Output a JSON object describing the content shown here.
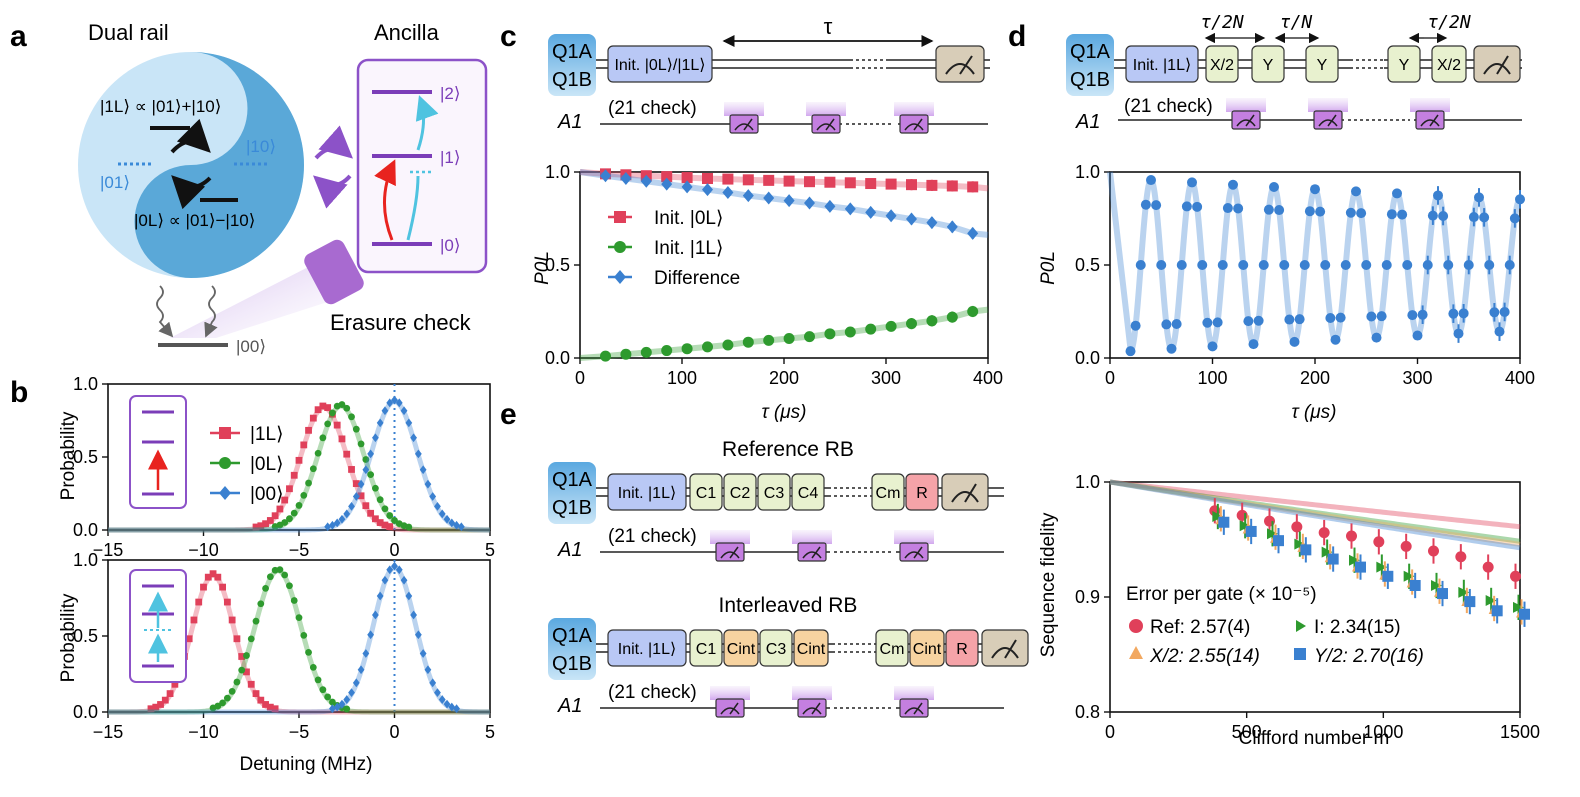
{
  "panels": {
    "a": {
      "letter": "a",
      "dual_rail_title": "Dual rail",
      "ancilla_title": "Ancilla",
      "logical_one": "|1L⟩ ∝ |01⟩+|10⟩",
      "logical_zero": "|0L⟩ ∝ |01⟩−|10⟩",
      "state_01": "|01⟩",
      "state_10": "|10⟩",
      "state_00": "|00⟩",
      "ancilla_levels": [
        "|2⟩",
        "|1⟩",
        "|0⟩"
      ],
      "erasure_label": "Erasure check"
    },
    "b": {
      "letter": "b",
      "ylabel": "Probability",
      "xlabel": "Detuning (MHz)",
      "legend": [
        "|1L⟩",
        "|0L⟩",
        "|00⟩"
      ],
      "colors": {
        "one": "#e0405a",
        "zero": "#2e9a2e",
        "vac": "#3a80d0"
      }
    },
    "c": {
      "letter": "c",
      "q_top": "Q1A",
      "q_bot": "Q1B",
      "ancilla": "A1",
      "init_label": "Init. |0L⟩/|1L⟩",
      "tau_label": "τ",
      "check_label": "(21 check)",
      "ylabel": "P0L",
      "xlabel": "τ (μs)",
      "legend": [
        "Init. |0L⟩",
        "Init. |1L⟩",
        "Difference"
      ]
    },
    "d": {
      "letter": "d",
      "q_top": "Q1A",
      "q_bot": "Q1B",
      "ancilla": "A1",
      "init_label": "Init. |1L⟩",
      "gates": [
        "X/2",
        "Y",
        "Y",
        "Y",
        "X/2"
      ],
      "tau_labels": [
        "τ/2N",
        "τ/N",
        "τ/2N"
      ],
      "check_label": "(21 check)",
      "ylabel": "P0L",
      "xlabel": "τ (μs)"
    },
    "e": {
      "letter": "e",
      "ref_title": "Reference RB",
      "int_title": "Interleaved RB",
      "q_top": "Q1A",
      "q_bot": "Q1B",
      "ancilla": "A1",
      "init_label": "Init. |1L⟩",
      "ref_gates": [
        "C1",
        "C2",
        "C3",
        "C4",
        "Cm",
        "R"
      ],
      "int_gates": [
        "C1",
        "Cint",
        "C3",
        "Cint",
        "Cm",
        "Cint",
        "R"
      ],
      "check_label": "(21 check)",
      "ylabel": "Sequence fidelity",
      "xlabel": "Clifford number m",
      "legend_title": "Error per gate (× 10⁻⁵)",
      "legend": [
        "Ref: 2.57(4)",
        "I: 2.34(15)",
        "X/2: 2.55(14)",
        "Y/2: 2.70(16)"
      ]
    }
  },
  "chart_data": [
    {
      "type": "line",
      "panel": "b-top",
      "xlabel": "Detuning (MHz)",
      "ylabel": "Probability",
      "xlim": [
        -15,
        5
      ],
      "ylim": [
        0,
        1
      ],
      "xticks": [
        -15,
        -10,
        -5,
        0,
        5
      ],
      "yticks": [
        0.0,
        0.5,
        1.0
      ],
      "series": [
        {
          "name": "|1L⟩",
          "peak_x": -3.7,
          "peak_y": 0.84,
          "width": 1.2
        },
        {
          "name": "|0L⟩",
          "peak_x": -2.8,
          "peak_y": 0.85,
          "width": 1.2
        },
        {
          "name": "|00⟩",
          "peak_x": 0.0,
          "peak_y": 0.88,
          "width": 1.2
        }
      ]
    },
    {
      "type": "line",
      "panel": "b-bottom",
      "xlabel": "Detuning (MHz)",
      "ylabel": "Probability",
      "xlim": [
        -15,
        5
      ],
      "ylim": [
        0,
        1
      ],
      "xticks": [
        -15,
        -10,
        -5,
        0,
        5
      ],
      "yticks": [
        0.0,
        0.5,
        1.0
      ],
      "series": [
        {
          "name": "|1L⟩",
          "peak_x": -9.5,
          "peak_y": 0.9,
          "width": 1.1
        },
        {
          "name": "|0L⟩",
          "peak_x": -6.1,
          "peak_y": 0.93,
          "width": 1.2
        },
        {
          "name": "|00⟩",
          "peak_x": 0.0,
          "peak_y": 0.95,
          "width": 1.1
        }
      ]
    },
    {
      "type": "scatter",
      "panel": "c",
      "xlabel": "τ (μs)",
      "ylabel": "P0L",
      "xlim": [
        0,
        400
      ],
      "ylim": [
        0,
        1
      ],
      "xticks": [
        0,
        100,
        200,
        300,
        400
      ],
      "yticks": [
        0.0,
        0.5,
        1.0
      ],
      "x": [
        25,
        45,
        65,
        85,
        105,
        125,
        145,
        165,
        185,
        205,
        225,
        245,
        265,
        285,
        305,
        325,
        345,
        365,
        385
      ],
      "series": [
        {
          "name": "Init. |0L⟩",
          "values": [
            0.99,
            0.985,
            0.98,
            0.975,
            0.97,
            0.965,
            0.962,
            0.958,
            0.955,
            0.951,
            0.948,
            0.945,
            0.942,
            0.938,
            0.935,
            0.932,
            0.928,
            0.925,
            0.92
          ]
        },
        {
          "name": "Init. |1L⟩",
          "values": [
            0.01,
            0.02,
            0.03,
            0.04,
            0.05,
            0.06,
            0.07,
            0.085,
            0.095,
            0.105,
            0.115,
            0.13,
            0.14,
            0.155,
            0.17,
            0.185,
            0.2,
            0.22,
            0.25
          ]
        },
        {
          "name": "Difference",
          "values": [
            0.98,
            0.965,
            0.95,
            0.935,
            0.92,
            0.905,
            0.89,
            0.873,
            0.86,
            0.846,
            0.833,
            0.815,
            0.802,
            0.783,
            0.765,
            0.747,
            0.728,
            0.705,
            0.67
          ]
        }
      ]
    },
    {
      "type": "scatter",
      "panel": "d",
      "xlabel": "τ (μs)",
      "ylabel": "P0L",
      "xlim": [
        0,
        400
      ],
      "ylim": [
        0,
        1
      ],
      "xticks": [
        0,
        100,
        200,
        300,
        400
      ],
      "yticks": [
        0.0,
        0.5,
        1.0
      ],
      "oscillation_period_us": 40,
      "decay_time_us": 1400
    },
    {
      "type": "scatter",
      "panel": "e",
      "xlabel": "Clifford number m",
      "ylabel": "Sequence fidelity",
      "xlim": [
        0,
        1500
      ],
      "ylim": [
        0.8,
        1.0
      ],
      "xticks": [
        0,
        500,
        1000,
        1500
      ],
      "yticks": [
        0.8,
        0.9,
        1.0
      ],
      "x": [
        400,
        500,
        600,
        700,
        800,
        900,
        1000,
        1100,
        1200,
        1300,
        1400,
        1500
      ],
      "series": [
        {
          "name": "Ref",
          "values": [
            0.975,
            0.971,
            0.966,
            0.961,
            0.956,
            0.953,
            0.948,
            0.944,
            0.94,
            0.935,
            0.926,
            0.918
          ]
        },
        {
          "name": "I",
          "values": [
            0.97,
            0.962,
            0.955,
            0.946,
            0.939,
            0.932,
            0.926,
            0.918,
            0.91,
            0.904,
            0.897,
            0.891
          ]
        },
        {
          "name": "X/2",
          "values": [
            0.968,
            0.96,
            0.952,
            0.944,
            0.935,
            0.927,
            0.92,
            0.913,
            0.905,
            0.897,
            0.89,
            0.887
          ]
        },
        {
          "name": "Y/2",
          "values": [
            0.965,
            0.957,
            0.949,
            0.941,
            0.933,
            0.926,
            0.918,
            0.91,
            0.903,
            0.896,
            0.888,
            0.885
          ]
        }
      ]
    }
  ]
}
